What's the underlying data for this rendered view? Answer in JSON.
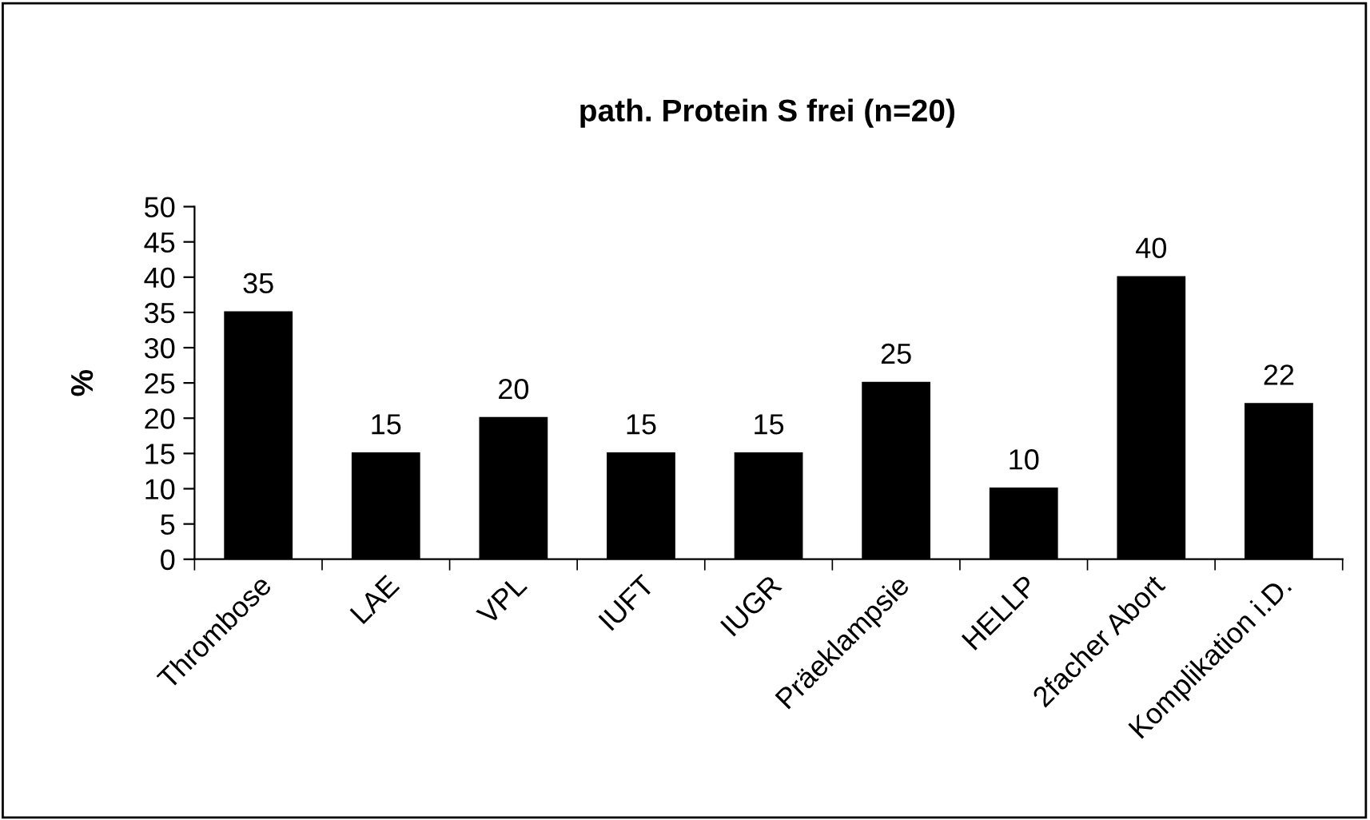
{
  "chart_data": {
    "type": "bar",
    "title": "path. Protein S frei (n=20)",
    "ylabel": "%",
    "categories": [
      "Thrombose",
      "LAE",
      "VPL",
      "IUFT",
      "IUGR",
      "Präeklampsie",
      "HELLP",
      "2facher Abort",
      "Komplikation i.D."
    ],
    "values": [
      35,
      15,
      20,
      15,
      15,
      25,
      10,
      40,
      22
    ],
    "color": "#000000",
    "ylim": [
      0,
      50
    ],
    "yticks": [
      0,
      5,
      10,
      15,
      20,
      25,
      30,
      35,
      40,
      45,
      50
    ],
    "grid": false,
    "data_labels": true
  }
}
